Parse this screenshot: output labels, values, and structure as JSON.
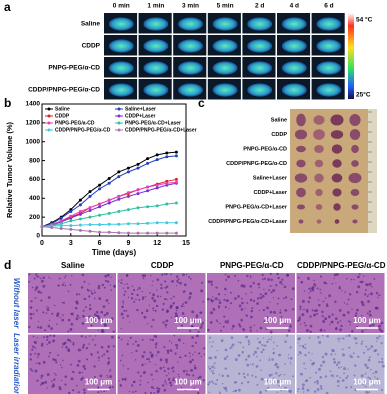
{
  "panel_labels": [
    "a",
    "b",
    "c",
    "d"
  ],
  "panel_a": {
    "columns": [
      "0 min",
      "1 min",
      "3 min",
      "5 min",
      "2 d",
      "4 d",
      "6 d"
    ],
    "rows": [
      "Saline",
      "CDDP",
      "PNPG-PEG/α-CD",
      "CDDP/PNPG-PEG/α-CD"
    ],
    "colorbar_max": "54 °C",
    "colorbar_min": "25°C"
  },
  "chart_data": {
    "type": "line",
    "ylabel": "Relative Tumor Volume (%)",
    "xlabel": "Time (days)",
    "x": [
      0,
      1,
      2,
      3,
      4,
      5,
      6,
      7,
      8,
      9,
      10,
      11,
      12,
      13,
      14
    ],
    "xlim": [
      0,
      15
    ],
    "xticks": [
      0,
      3,
      6,
      9,
      12,
      15
    ],
    "ylim": [
      0,
      1400
    ],
    "yticks": [
      0,
      200,
      400,
      600,
      800,
      1000,
      1200,
      1400
    ],
    "series": [
      {
        "name": "Saline",
        "color": "#000000",
        "values": [
          100,
          140,
          200,
          280,
          380,
          470,
          540,
          610,
          680,
          720,
          760,
          820,
          860,
          880,
          890
        ]
      },
      {
        "name": "Saline+Laser",
        "color": "#1f3fbf",
        "values": [
          100,
          130,
          190,
          260,
          330,
          420,
          500,
          560,
          630,
          680,
          720,
          770,
          810,
          840,
          850
        ]
      },
      {
        "name": "CDDP",
        "color": "#e02020",
        "values": [
          100,
          120,
          160,
          200,
          240,
          300,
          340,
          380,
          420,
          450,
          490,
          520,
          550,
          580,
          600
        ]
      },
      {
        "name": "CDDP+Laser",
        "color": "#7a2fd0",
        "values": [
          100,
          115,
          150,
          190,
          230,
          270,
          310,
          350,
          390,
          420,
          450,
          480,
          510,
          540,
          560
        ]
      },
      {
        "name": "PNPG-PEG/a-CD",
        "color": "#e040c0",
        "values": [
          100,
          120,
          160,
          210,
          260,
          300,
          340,
          380,
          420,
          460,
          490,
          520,
          540,
          560,
          570
        ]
      },
      {
        "name": "PNPG-PEG/α-CD+Laser",
        "color": "#30c0a0",
        "values": [
          100,
          110,
          130,
          160,
          180,
          200,
          220,
          240,
          260,
          280,
          300,
          310,
          320,
          340,
          350
        ]
      },
      {
        "name": "CDDP/PNPG-PEG/α-CD",
        "color": "#40c8e0",
        "values": [
          100,
          105,
          110,
          110,
          115,
          120,
          120,
          125,
          125,
          130,
          130,
          135,
          140,
          140,
          140
        ]
      },
      {
        "name": "CDDP/PNPG-PEG/α-CD+Laser",
        "color": "#b070b0",
        "values": [
          100,
          90,
          80,
          70,
          60,
          50,
          40,
          40,
          35,
          30,
          30,
          30,
          30,
          30,
          30
        ]
      }
    ]
  },
  "panel_c": {
    "rows": [
      "Saline",
      "CDDP",
      "PNPG-PEG/α-CD",
      "CDDP/PNPG-PEG/α-CD",
      "Saline+Laser",
      "CDDP+Laser",
      "PNPG-PEG/α-CD+Laser",
      "CDDP/PNPG-PEG/α-CD+Laser"
    ]
  },
  "panel_d": {
    "columns": [
      "Saline",
      "CDDP",
      "PNPG-PEG/α-CD",
      "CDDP/PNPG-PEG/α-CD"
    ],
    "rows": [
      "Without laser",
      "Laser irradiation"
    ],
    "scale_labels": [
      [
        "100 μm",
        "100 μm",
        "100 μm",
        "100 μm"
      ],
      [
        "100 μm",
        "100 μm",
        "100 μm",
        "100 μm"
      ]
    ]
  }
}
